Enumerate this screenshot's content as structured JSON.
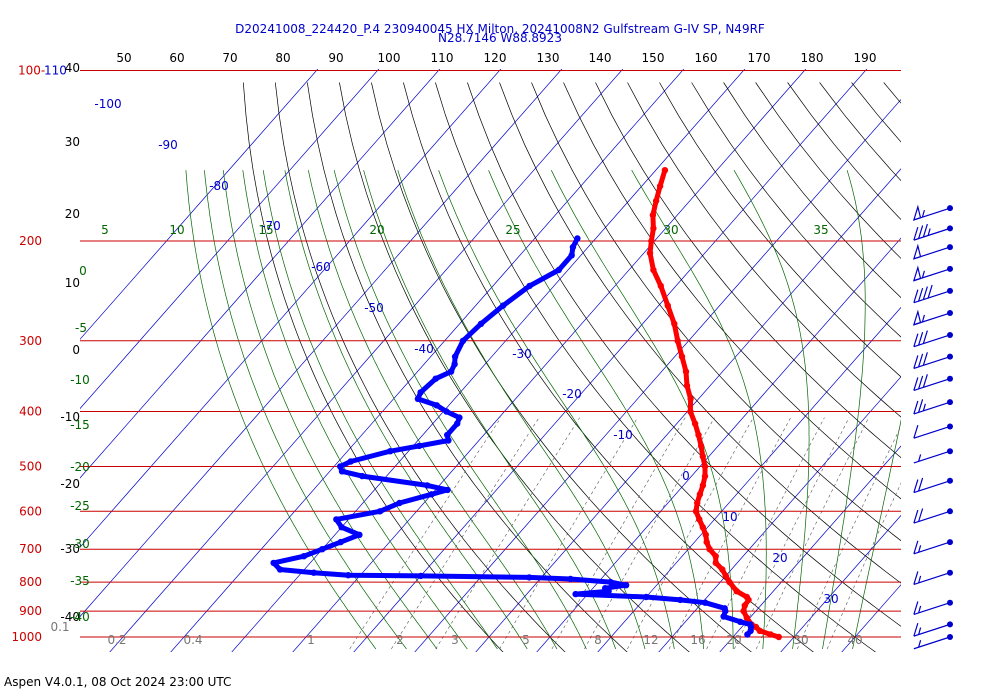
{
  "header": {
    "line1": "D20241008_224420_P.4 230940045 HX Milton, 20241008N2 Gulfstream G-IV SP, N49RF",
    "line2": "N28.7146 W88.8923"
  },
  "footer": "Aspen V4.0.1, 08 Oct 2024  23:00 UTC",
  "colors": {
    "pressure_line": "#cc0000",
    "isotherm": "#0000cc",
    "dry_adiabat": "#000000",
    "moist_adiabat": "#006600",
    "mixing_ratio": "#555555",
    "temperature": "#ff0000",
    "dewpoint": "#0000ff",
    "wind_barb": "#0000cc"
  },
  "chart_data": {
    "type": "line",
    "title": "",
    "xlabel": "",
    "ylabel": "",
    "pressure_labels": [
      {
        "p": 100,
        "label": "100-110"
      },
      {
        "p": 200,
        "label": "200"
      },
      {
        "p": 300,
        "label": "300"
      },
      {
        "p": 400,
        "label": "400"
      },
      {
        "p": 500,
        "label": "500"
      },
      {
        "p": 600,
        "label": "600"
      },
      {
        "p": 700,
        "label": "700"
      },
      {
        "p": 800,
        "label": "800"
      },
      {
        "p": 900,
        "label": "900"
      },
      {
        "p": 1000,
        "label": "1000"
      }
    ],
    "top_ticks": [
      "50",
      "60",
      "70",
      "80",
      "90",
      "100",
      "110",
      "120",
      "130",
      "140",
      "150",
      "160",
      "170",
      "180",
      "190"
    ],
    "left_ticks": [
      "40",
      "30",
      "20",
      "10",
      "0",
      "-10",
      "-20",
      "-30",
      "-40"
    ],
    "isotherm_labels": [
      "-100",
      "-90",
      "-80",
      "-70",
      "-60",
      "-50",
      "-40",
      "-30",
      "-20",
      "-10",
      "0",
      "10",
      "20",
      "30"
    ],
    "moist_adiabat_labels": [
      "5",
      "10",
      "15",
      "20",
      "25",
      "30",
      "35",
      "0",
      "-5",
      "-10",
      "-15",
      "-20",
      "-25",
      "-30",
      "-35",
      "-40"
    ],
    "mixing_ratio_labels": [
      "0.1",
      "0.2",
      "0.4",
      "1",
      "2",
      "3",
      "5",
      "8",
      "12",
      "16",
      "20",
      "30",
      "40"
    ],
    "temperature_profile": [
      [
        1000,
        27.5
      ],
      [
        990,
        25.8
      ],
      [
        975,
        23.5
      ],
      [
        960,
        22.3
      ],
      [
        950,
        21.2
      ],
      [
        925,
        19.5
      ],
      [
        900,
        18.0
      ],
      [
        880,
        17.4
      ],
      [
        860,
        17.2
      ],
      [
        850,
        16.5
      ],
      [
        830,
        14.0
      ],
      [
        800,
        11.5
      ],
      [
        780,
        10.0
      ],
      [
        760,
        8.5
      ],
      [
        740,
        6.5
      ],
      [
        720,
        5.5
      ],
      [
        700,
        3.5
      ],
      [
        680,
        2.0
      ],
      [
        660,
        0.8
      ],
      [
        640,
        -0.8
      ],
      [
        620,
        -2.5
      ],
      [
        600,
        -4.2
      ],
      [
        580,
        -5.2
      ],
      [
        560,
        -6.0
      ],
      [
        540,
        -6.8
      ],
      [
        520,
        -7.8
      ],
      [
        500,
        -9.2
      ],
      [
        480,
        -11.0
      ],
      [
        460,
        -12.8
      ],
      [
        440,
        -14.8
      ],
      [
        420,
        -17.0
      ],
      [
        400,
        -19.5
      ],
      [
        380,
        -21.3
      ],
      [
        360,
        -23.8
      ],
      [
        340,
        -26.0
      ],
      [
        320,
        -28.8
      ],
      [
        300,
        -31.8
      ],
      [
        280,
        -34.8
      ],
      [
        260,
        -38.5
      ],
      [
        240,
        -42.5
      ],
      [
        225,
        -46.0
      ],
      [
        210,
        -49.0
      ],
      [
        200,
        -50.5
      ],
      [
        190,
        -52.0
      ],
      [
        180,
        -54.0
      ],
      [
        170,
        -55.5
      ],
      [
        160,
        -57.0
      ],
      [
        150,
        -58.5
      ]
    ],
    "dewpoint_profile": [
      [
        990,
        22.0
      ],
      [
        975,
        22.0
      ],
      [
        960,
        21.5
      ],
      [
        950,
        21.0
      ],
      [
        940,
        19.0
      ],
      [
        920,
        15.5
      ],
      [
        900,
        15.0
      ],
      [
        890,
        14.5
      ],
      [
        870,
        10.5
      ],
      [
        860,
        6.0
      ],
      [
        850,
        0.0
      ],
      [
        840,
        -12.0
      ],
      [
        830,
        -7.0
      ],
      [
        820,
        -8.0
      ],
      [
        810,
        -5.0
      ],
      [
        800,
        -8.0
      ],
      [
        790,
        -15.0
      ],
      [
        785,
        -22.0
      ],
      [
        780,
        -40.0
      ],
      [
        778,
        -52.0
      ],
      [
        770,
        -58.0
      ],
      [
        760,
        -64.0
      ],
      [
        740,
        -66.0
      ],
      [
        720,
        -62.0
      ],
      [
        700,
        -60.0
      ],
      [
        680,
        -58.0
      ],
      [
        660,
        -56.0
      ],
      [
        640,
        -60.0
      ],
      [
        620,
        -62.0
      ],
      [
        600,
        -56.0
      ],
      [
        580,
        -54.0
      ],
      [
        560,
        -50.0
      ],
      [
        550,
        -48.0
      ],
      [
        540,
        -52.0
      ],
      [
        520,
        -64.0
      ],
      [
        510,
        -68.0
      ],
      [
        500,
        -69.0
      ],
      [
        490,
        -68.0
      ],
      [
        470,
        -63.0
      ],
      [
        460,
        -59.0
      ],
      [
        450,
        -55.0
      ],
      [
        440,
        -56.0
      ],
      [
        420,
        -56.0
      ],
      [
        410,
        -56.5
      ],
      [
        400,
        -59.5
      ],
      [
        390,
        -62.0
      ],
      [
        380,
        -66.0
      ],
      [
        370,
        -66.5
      ],
      [
        350,
        -66.0
      ],
      [
        340,
        -64.5
      ],
      [
        330,
        -65.0
      ],
      [
        320,
        -66.0
      ],
      [
        300,
        -67.0
      ],
      [
        280,
        -66.5
      ],
      [
        260,
        -65.5
      ],
      [
        240,
        -64.0
      ],
      [
        225,
        -61.5
      ],
      [
        212,
        -61.5
      ],
      [
        205,
        -62.5
      ],
      [
        198,
        -63.0
      ]
    ],
    "wind_barbs": [
      {
        "p": 175,
        "speed_kt": 55
      },
      {
        "p": 190,
        "speed_kt": 35
      },
      {
        "p": 205,
        "speed_kt": 50
      },
      {
        "p": 224,
        "speed_kt": 55
      },
      {
        "p": 245,
        "speed_kt": 40
      },
      {
        "p": 268,
        "speed_kt": 55
      },
      {
        "p": 293,
        "speed_kt": 30
      },
      {
        "p": 320,
        "speed_kt": 30
      },
      {
        "p": 350,
        "speed_kt": 30
      },
      {
        "p": 385,
        "speed_kt": 25
      },
      {
        "p": 425,
        "speed_kt": 10
      },
      {
        "p": 470,
        "speed_kt": 5
      },
      {
        "p": 530,
        "speed_kt": 20
      },
      {
        "p": 600,
        "speed_kt": 20
      },
      {
        "p": 680,
        "speed_kt": 15
      },
      {
        "p": 770,
        "speed_kt": 15
      },
      {
        "p": 870,
        "speed_kt": 15
      },
      {
        "p": 950,
        "speed_kt": 15
      },
      {
        "p": 1000,
        "speed_kt": 5
      }
    ]
  }
}
